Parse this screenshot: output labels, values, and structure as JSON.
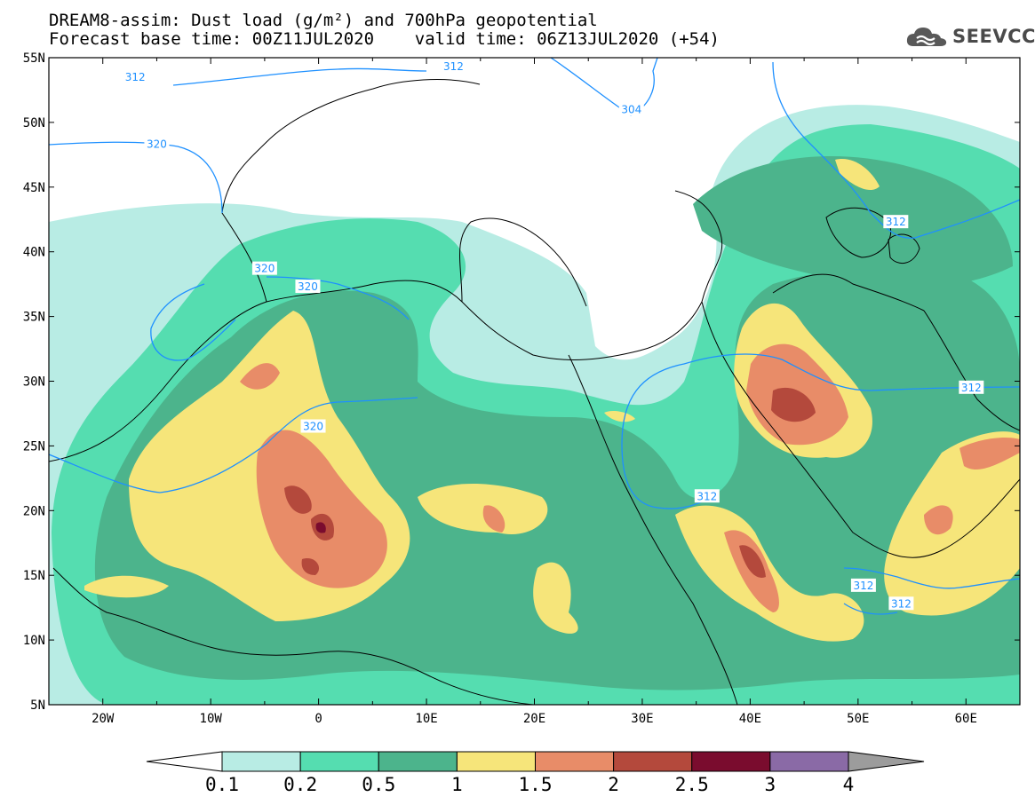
{
  "header": {
    "title_line1": "DREAM8-assim: Dust load (g/m²) and 700hPa geopotential",
    "title_line2": "Forecast base time: 00Z11JUL2020    valid time: 06Z13JUL2020 (+54)",
    "logo_text": "SEEVCCC"
  },
  "map": {
    "projection": "lat-lon",
    "lon_range": [
      -25,
      65
    ],
    "lat_range": [
      5,
      55
    ],
    "lat_ticks": [
      "55N",
      "50N",
      "45N",
      "40N",
      "35N",
      "30N",
      "25N",
      "20N",
      "15N",
      "10N",
      "5N"
    ],
    "lon_ticks": [
      "20W",
      "10W",
      "0",
      "10E",
      "20E",
      "30E",
      "40E",
      "50E",
      "60E"
    ],
    "geopotential_labels": [
      {
        "text": "312",
        "lon": -17,
        "lat": 53.5
      },
      {
        "text": "312",
        "lon": 12.5,
        "lat": 54.3
      },
      {
        "text": "304",
        "lon": 29,
        "lat": 51
      },
      {
        "text": "320",
        "lon": -15,
        "lat": 48.3
      },
      {
        "text": "320",
        "lon": -5,
        "lat": 38.7
      },
      {
        "text": "320",
        "lon": -1,
        "lat": 37.3
      },
      {
        "text": "320",
        "lon": -0.5,
        "lat": 26.5
      },
      {
        "text": "312",
        "lon": 53.5,
        "lat": 42.3
      },
      {
        "text": "312",
        "lon": 60.5,
        "lat": 29.5
      },
      {
        "text": "312",
        "lon": 36,
        "lat": 21.1
      },
      {
        "text": "312",
        "lon": 50.5,
        "lat": 14.2
      },
      {
        "text": "312",
        "lon": 54,
        "lat": 12.8
      }
    ],
    "colors": {
      "isoline": "#1e90ff",
      "coast": "#000000"
    }
  },
  "colorbar": {
    "labels": [
      "0.1",
      "0.2",
      "0.5",
      "1",
      "1.5",
      "2",
      "2.5",
      "3",
      "4"
    ],
    "colors": [
      "#ffffff",
      "#b8ece4",
      "#55ddb0",
      "#4cb48c",
      "#f6e57a",
      "#e88c68",
      "#b4493c",
      "#7a0c2e",
      "#8a6aa6",
      "#9c9c9c"
    ]
  }
}
